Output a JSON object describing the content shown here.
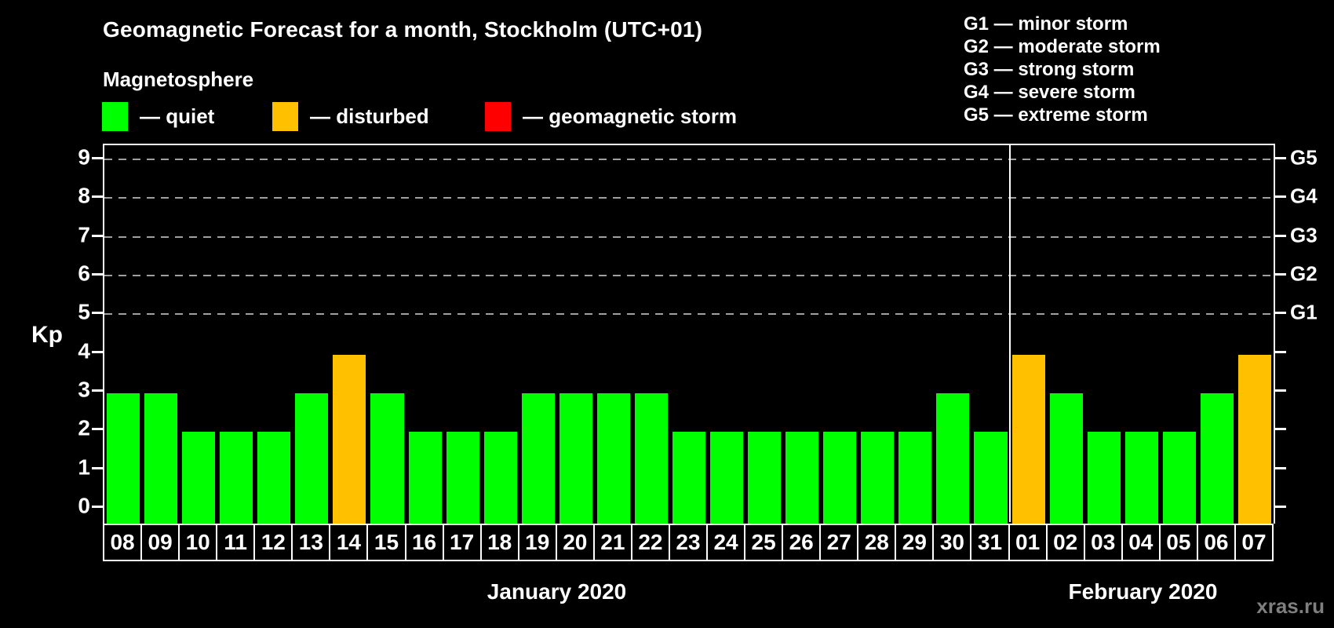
{
  "header": {
    "title": "Geomagnetic Forecast for a month, Stockholm (UTC+01)",
    "subtitle": "Magnetosphere",
    "legend": [
      {
        "key": "quiet",
        "label": "— quiet",
        "color": "#00ff00"
      },
      {
        "key": "disturbed",
        "label": "— disturbed",
        "color": "#ffc000"
      },
      {
        "key": "storm",
        "label": "— geomagnetic storm",
        "color": "#ff0000"
      }
    ],
    "g_scale_legend": [
      "G1 — minor storm",
      "G2 — moderate storm",
      "G3 — strong storm",
      "G4 — severe storm",
      "G5 — extreme storm"
    ]
  },
  "chart_data": {
    "type": "bar",
    "title": "Geomagnetic Forecast for a month, Stockholm (UTC+01)",
    "ylabel": "Kp",
    "ylim": [
      0,
      9
    ],
    "yticks": [
      0,
      1,
      2,
      3,
      4,
      5,
      6,
      7,
      8,
      9
    ],
    "grid": "horizontal dashed lines at Kp 5-9 (G1-G5 storm levels)",
    "right_axis_labels": [
      {
        "kp": 5,
        "label": "G1"
      },
      {
        "kp": 6,
        "label": "G2"
      },
      {
        "kp": 7,
        "label": "G3"
      },
      {
        "kp": 8,
        "label": "G4"
      },
      {
        "kp": 9,
        "label": "G5"
      }
    ],
    "months": [
      {
        "label": "January 2020",
        "days": [
          {
            "day": "08",
            "kp": 3,
            "state": "quiet"
          },
          {
            "day": "09",
            "kp": 3,
            "state": "quiet"
          },
          {
            "day": "10",
            "kp": 2,
            "state": "quiet"
          },
          {
            "day": "11",
            "kp": 2,
            "state": "quiet"
          },
          {
            "day": "12",
            "kp": 2,
            "state": "quiet"
          },
          {
            "day": "13",
            "kp": 3,
            "state": "quiet"
          },
          {
            "day": "14",
            "kp": 4,
            "state": "disturbed"
          },
          {
            "day": "15",
            "kp": 3,
            "state": "quiet"
          },
          {
            "day": "16",
            "kp": 2,
            "state": "quiet"
          },
          {
            "day": "17",
            "kp": 2,
            "state": "quiet"
          },
          {
            "day": "18",
            "kp": 2,
            "state": "quiet"
          },
          {
            "day": "19",
            "kp": 3,
            "state": "quiet"
          },
          {
            "day": "20",
            "kp": 3,
            "state": "quiet"
          },
          {
            "day": "21",
            "kp": 3,
            "state": "quiet"
          },
          {
            "day": "22",
            "kp": 3,
            "state": "quiet"
          },
          {
            "day": "23",
            "kp": 2,
            "state": "quiet"
          },
          {
            "day": "24",
            "kp": 2,
            "state": "quiet"
          },
          {
            "day": "25",
            "kp": 2,
            "state": "quiet"
          },
          {
            "day": "26",
            "kp": 2,
            "state": "quiet"
          },
          {
            "day": "27",
            "kp": 2,
            "state": "quiet"
          },
          {
            "day": "28",
            "kp": 2,
            "state": "quiet"
          },
          {
            "day": "29",
            "kp": 2,
            "state": "quiet"
          },
          {
            "day": "30",
            "kp": 3,
            "state": "quiet"
          },
          {
            "day": "31",
            "kp": 2,
            "state": "quiet"
          }
        ]
      },
      {
        "label": "February 2020",
        "days": [
          {
            "day": "01",
            "kp": 4,
            "state": "disturbed"
          },
          {
            "day": "02",
            "kp": 3,
            "state": "quiet"
          },
          {
            "day": "03",
            "kp": 2,
            "state": "quiet"
          },
          {
            "day": "04",
            "kp": 2,
            "state": "quiet"
          },
          {
            "day": "05",
            "kp": 2,
            "state": "quiet"
          },
          {
            "day": "06",
            "kp": 3,
            "state": "quiet"
          },
          {
            "day": "07",
            "kp": 4,
            "state": "disturbed"
          }
        ]
      }
    ]
  },
  "colors": {
    "background": "#000000",
    "axis": "#ffffff",
    "gridline": "#a0a0a0",
    "quiet": "#00ff00",
    "disturbed": "#ffc000",
    "storm": "#ff0000",
    "watermark": "#7f7f7f"
  },
  "watermark": "xras.ru"
}
